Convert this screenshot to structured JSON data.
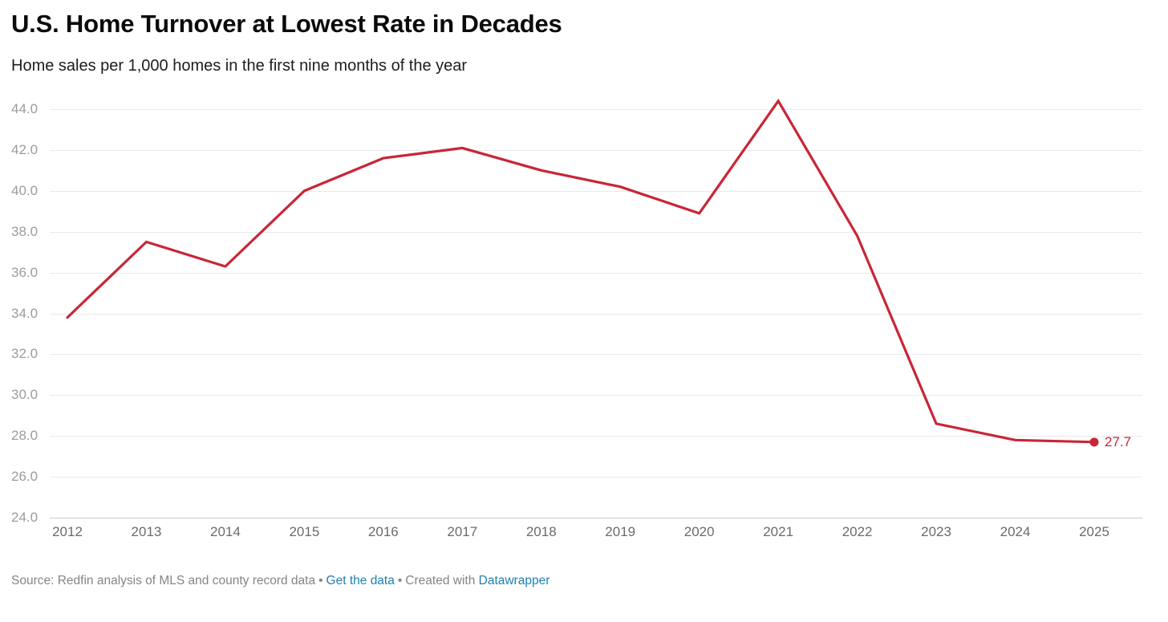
{
  "header": {
    "title": "U.S. Home Turnover at Lowest Rate in Decades",
    "subtitle": "Home sales per 1,000 homes in the first nine months of the year"
  },
  "chart_data": {
    "type": "line",
    "title": "U.S. Home Turnover at Lowest Rate in Decades",
    "subtitle": "Home sales per 1,000 homes in the first nine months of the year",
    "x": [
      2012,
      2013,
      2014,
      2015,
      2016,
      2017,
      2018,
      2019,
      2020,
      2021,
      2022,
      2023,
      2024,
      2025
    ],
    "series": [
      {
        "name": "Home sales per 1,000 homes",
        "values": [
          33.8,
          37.5,
          36.3,
          40.0,
          41.6,
          42.1,
          41.0,
          40.2,
          38.9,
          44.4,
          37.8,
          28.6,
          27.8,
          27.7
        ]
      }
    ],
    "xlabel": "",
    "ylabel": "",
    "ylim": [
      24,
      44
    ],
    "ytick_step": 2,
    "ytick_decimals": 1,
    "grid": "horizontal-only",
    "legend": "none",
    "line_color": "#c82637",
    "end_dot": true,
    "end_label": "27.7"
  },
  "colors": {
    "accent_red": "#c82637",
    "link_blue": "#1f7fae",
    "gridline": "#eaeaea",
    "baseline": "#c9c9c9",
    "y_tick_text": "#9c9c9c",
    "x_tick_text": "#6b6b6b",
    "footer_text": "#858585"
  },
  "footer": {
    "source_text": "Source: Redfin analysis of MLS and county record data",
    "separator": "•",
    "get_data_label": "Get the data",
    "created_with_label": "Created with",
    "datawrapper_label": "Datawrapper"
  }
}
